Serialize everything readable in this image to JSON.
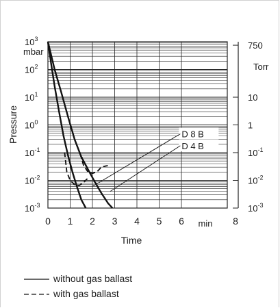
{
  "chart_data": {
    "type": "line",
    "xlabel": "Time",
    "x_unit": "min",
    "x_ticks": [
      "0",
      "1",
      "2",
      "3",
      "4",
      "5",
      "6",
      "8"
    ],
    "xlim": [
      0,
      8
    ],
    "ylabel": "Pressure",
    "y_unit": "mbar",
    "y_scale": "log",
    "ylim": [
      0.001,
      1000
    ],
    "y_ticks": [
      {
        "value": 1000,
        "base": "10",
        "exp": "3"
      },
      {
        "value": 100,
        "base": "10",
        "exp": "2"
      },
      {
        "value": 10,
        "base": "10",
        "exp": "1"
      },
      {
        "value": 1,
        "base": "10",
        "exp": "0"
      },
      {
        "value": 0.1,
        "base": "10",
        "exp": "-1"
      },
      {
        "value": 0.01,
        "base": "10",
        "exp": "-2"
      },
      {
        "value": 0.001,
        "base": "10",
        "exp": "-3"
      }
    ],
    "y2_unit": "Torr",
    "y2_ticks": [
      {
        "value": 750,
        "base": "750",
        "exp": ""
      },
      {
        "value": 10,
        "base": "10",
        "exp": ""
      },
      {
        "value": 1,
        "base": "1",
        "exp": ""
      },
      {
        "value": 0.1,
        "base": "10",
        "exp": "-1"
      },
      {
        "value": 0.01,
        "base": "10",
        "exp": "-2"
      },
      {
        "value": 0.001,
        "base": "10",
        "exp": "-3"
      }
    ],
    "grid": true,
    "series": [
      {
        "name": "D 4 B",
        "style": "solid",
        "x": [
          0,
          0.15,
          0.3,
          0.5,
          0.7,
          0.9,
          1.1,
          1.3,
          1.5,
          1.7
        ],
        "y": [
          1000,
          150,
          25,
          3,
          0.4,
          0.08,
          0.02,
          0.006,
          0.002,
          0.001
        ]
      },
      {
        "name": "D 8 B",
        "style": "solid",
        "x": [
          0,
          0.3,
          0.6,
          0.9,
          1.2,
          1.5,
          1.8,
          2.1,
          2.4,
          2.7,
          2.9
        ],
        "y": [
          1000,
          100,
          15,
          2,
          0.3,
          0.07,
          0.025,
          0.009,
          0.0035,
          0.0015,
          0.001
        ]
      },
      {
        "name": "D 4 B",
        "style": "dashed",
        "x": [
          0.75,
          0.85,
          1.0,
          1.2,
          1.4,
          1.6,
          1.8
        ],
        "y": [
          0.1,
          0.02,
          0.01,
          0.007,
          0.0065,
          0.0085,
          0.012
        ]
      },
      {
        "name": "D 8 B",
        "style": "dashed",
        "x": [
          1.45,
          1.6,
          1.8,
          2.0,
          2.2,
          2.4,
          2.6,
          2.8
        ],
        "y": [
          0.09,
          0.035,
          0.02,
          0.018,
          0.02,
          0.03,
          0.033,
          0.035
        ]
      }
    ],
    "labels": [
      {
        "text": "D 8 B",
        "x": 6.1,
        "y": 0.4,
        "pointer_to": [
          2.0,
          0.006
        ]
      },
      {
        "text": "D 4 B",
        "x": 6.1,
        "y": 0.15,
        "pointer_to": [
          2.8,
          0.004
        ]
      }
    ],
    "legend": [
      {
        "label": "without gas ballast",
        "style": "solid"
      },
      {
        "label": "with gas ballast",
        "style": "dashed"
      }
    ],
    "legend_position": "bottom-left"
  }
}
